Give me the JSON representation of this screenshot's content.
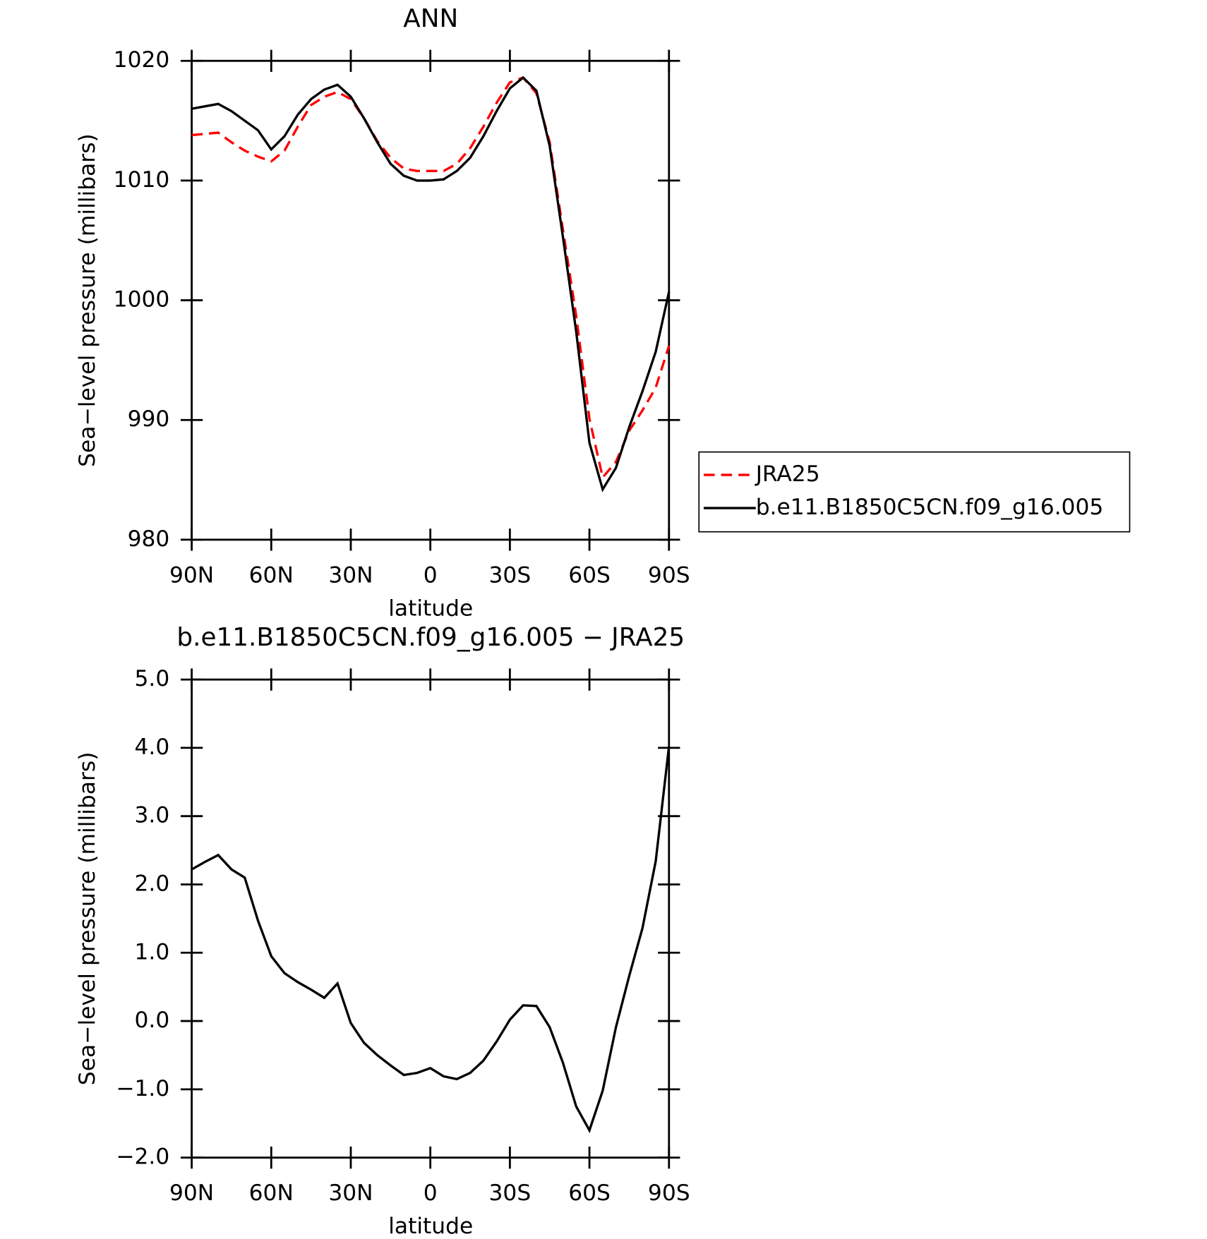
{
  "chart_data": [
    {
      "type": "line",
      "title": "ANN",
      "x_label": "latitude",
      "y_label": "Sea−level pressure (millibars)",
      "x": [
        90,
        85,
        80,
        75,
        70,
        65,
        60,
        55,
        50,
        45,
        40,
        35,
        30,
        25,
        20,
        15,
        10,
        5,
        0,
        -5,
        -10,
        -15,
        -20,
        -25,
        -30,
        -35,
        -40,
        -45,
        -50,
        -55,
        -60,
        -65,
        -70,
        -75,
        -80,
        -85,
        -90
      ],
      "xlim": [
        90,
        -90
      ],
      "xticks": [
        {
          "value": 90,
          "label": "90N"
        },
        {
          "value": 60,
          "label": "60N"
        },
        {
          "value": 30,
          "label": "30N"
        },
        0,
        {
          "value": -30,
          "label": "30S"
        },
        {
          "value": -60,
          "label": "60S"
        },
        {
          "value": -90,
          "label": "90S"
        }
      ],
      "ylim": [
        980,
        1020
      ],
      "yticks": [
        980,
        990,
        1000,
        1010,
        1020
      ],
      "legend": "right",
      "series": [
        {
          "name": "JRA25",
          "color": "#ff0000",
          "dash": true,
          "values": [
            1013.8,
            1013.9,
            1014.0,
            1013.2,
            1012.5,
            1012.0,
            1011.6,
            1012.5,
            1014.5,
            1016.3,
            1017.0,
            1017.4,
            1016.8,
            1015.2,
            1013.3,
            1011.9,
            1011.0,
            1010.8,
            1010.8,
            1010.8,
            1011.4,
            1012.7,
            1014.5,
            1016.5,
            1018.2,
            1018.6,
            1017.3,
            1013.2,
            1005.9,
            998.7,
            990.1,
            985.2,
            986.5,
            989.1,
            990.8,
            992.7,
            996.2
          ]
        },
        {
          "name": "b.e11.B1850C5CN.f09_g16.005",
          "color": "#000000",
          "dash": false,
          "values": [
            1016.0,
            1016.2,
            1016.4,
            1015.8,
            1015.0,
            1014.2,
            1012.6,
            1013.7,
            1015.5,
            1016.8,
            1017.6,
            1018.0,
            1017.0,
            1015.2,
            1013.2,
            1011.4,
            1010.4,
            1010.0,
            1010.0,
            1010.1,
            1010.8,
            1011.9,
            1013.7,
            1015.8,
            1017.7,
            1018.6,
            1017.5,
            1012.9,
            1005.3,
            997.4,
            988.1,
            984.2,
            986.0,
            989.4,
            992.4,
            995.7,
            1000.7
          ]
        }
      ]
    },
    {
      "type": "line",
      "title": "b.e11.B1850C5CN.f09_g16.005 − JRA25",
      "x_label": "latitude",
      "y_label": "Sea−level pressure (millibars)",
      "x": [
        90,
        85,
        80,
        75,
        70,
        65,
        60,
        55,
        50,
        45,
        40,
        35,
        30,
        25,
        20,
        15,
        10,
        5,
        0,
        -5,
        -10,
        -15,
        -20,
        -25,
        -30,
        -35,
        -40,
        -45,
        -50,
        -55,
        -60,
        -65,
        -70,
        -75,
        -80,
        -85,
        -90
      ],
      "xlim": [
        90,
        -90
      ],
      "xticks": [
        {
          "value": 90,
          "label": "90N"
        },
        {
          "value": 60,
          "label": "60N"
        },
        {
          "value": 30,
          "label": "30N"
        },
        0,
        {
          "value": -30,
          "label": "30S"
        },
        {
          "value": -60,
          "label": "60S"
        },
        {
          "value": -90,
          "label": "90S"
        }
      ],
      "ylim": [
        -2,
        5
      ],
      "yticks": [
        {
          "value": -2,
          "label": "−2.0"
        },
        {
          "value": -1,
          "label": "−1.0"
        },
        {
          "value": 0,
          "label": "0.0"
        },
        {
          "value": 1,
          "label": "1.0"
        },
        {
          "value": 2,
          "label": "2.0"
        },
        {
          "value": 3,
          "label": "3.0"
        },
        {
          "value": 4,
          "label": "4.0"
        },
        {
          "value": 5,
          "label": "5.0"
        }
      ],
      "series": [
        {
          "color": "#000000",
          "dash": false,
          "values": [
            2.22,
            2.33,
            2.43,
            2.22,
            2.1,
            1.47,
            0.95,
            0.7,
            0.57,
            0.46,
            0.34,
            0.55,
            -0.03,
            -0.32,
            -0.5,
            -0.65,
            -0.79,
            -0.76,
            -0.69,
            -0.81,
            -0.85,
            -0.76,
            -0.58,
            -0.3,
            0.02,
            0.23,
            0.22,
            -0.09,
            -0.61,
            -1.25,
            -1.6,
            -1.02,
            -0.09,
            0.66,
            1.36,
            2.34,
            4.02
          ]
        }
      ]
    }
  ]
}
